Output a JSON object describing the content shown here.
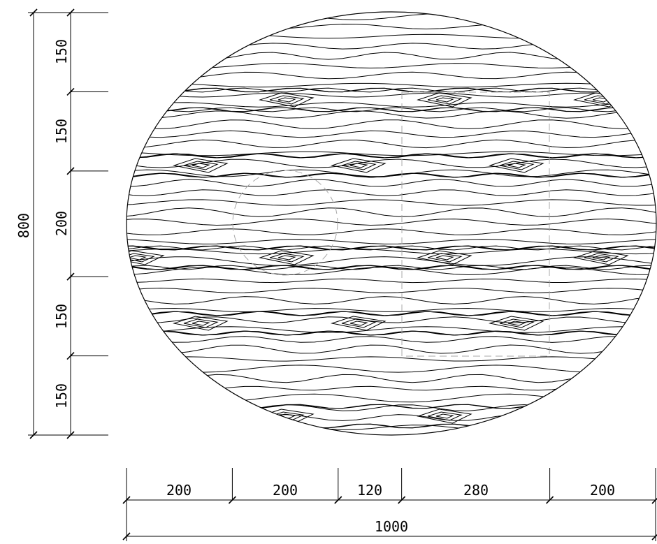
{
  "drawing": {
    "overall_width": 1000,
    "overall_height": 800,
    "vertical_segments": [
      150,
      150,
      200,
      150,
      150
    ],
    "horizontal_segments": [
      200,
      200,
      120,
      280,
      200
    ],
    "labels": {
      "overall_width": "1000",
      "overall_height": "800",
      "vertical": [
        "150",
        "150",
        "200",
        "150",
        "150"
      ],
      "horizontal": [
        "200",
        "200",
        "120",
        "280",
        "200"
      ]
    },
    "colors": {
      "line": "#000000",
      "guide": "#a8a8a8",
      "background": "#ffffff"
    }
  }
}
